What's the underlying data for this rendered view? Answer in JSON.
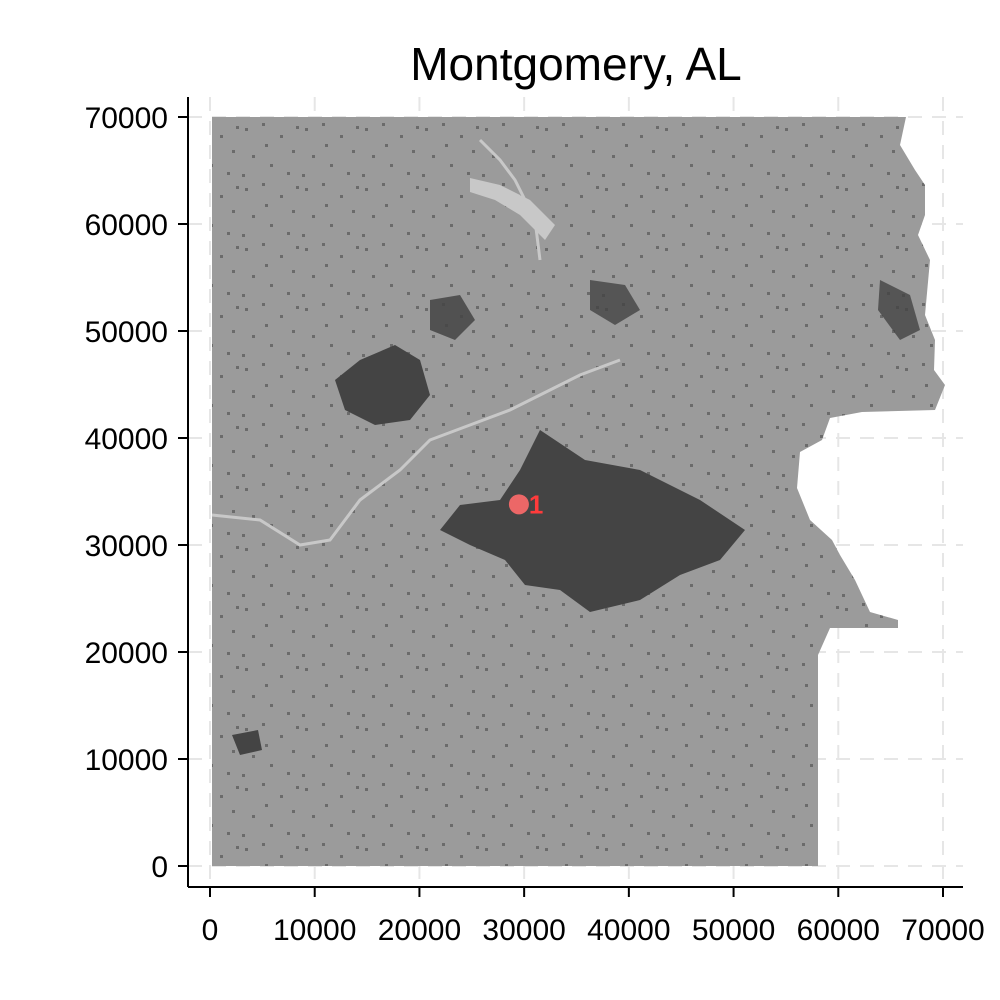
{
  "chart_data": {
    "type": "scatter",
    "title": "Montgomery, AL",
    "xlabel": "",
    "ylabel": "",
    "xlim": [
      0,
      70000
    ],
    "ylim": [
      0,
      70000
    ],
    "x_ticks": [
      "0",
      "10000",
      "20000",
      "30000",
      "40000",
      "50000",
      "60000",
      "70000"
    ],
    "y_ticks": [
      "0",
      "10000",
      "20000",
      "30000",
      "40000",
      "50000",
      "60000",
      "70000"
    ],
    "grid": true,
    "grid_style": "dashed",
    "colors": {
      "land": "#9b9b9b",
      "developed": "#444444",
      "water": "#c8c8c8",
      "marker": "#ff6b6b",
      "marker_label": "#ff3b3b",
      "grid": "#e6e6e6"
    },
    "points": [
      {
        "label": "1",
        "x": 29500,
        "y": 33800
      }
    ]
  }
}
